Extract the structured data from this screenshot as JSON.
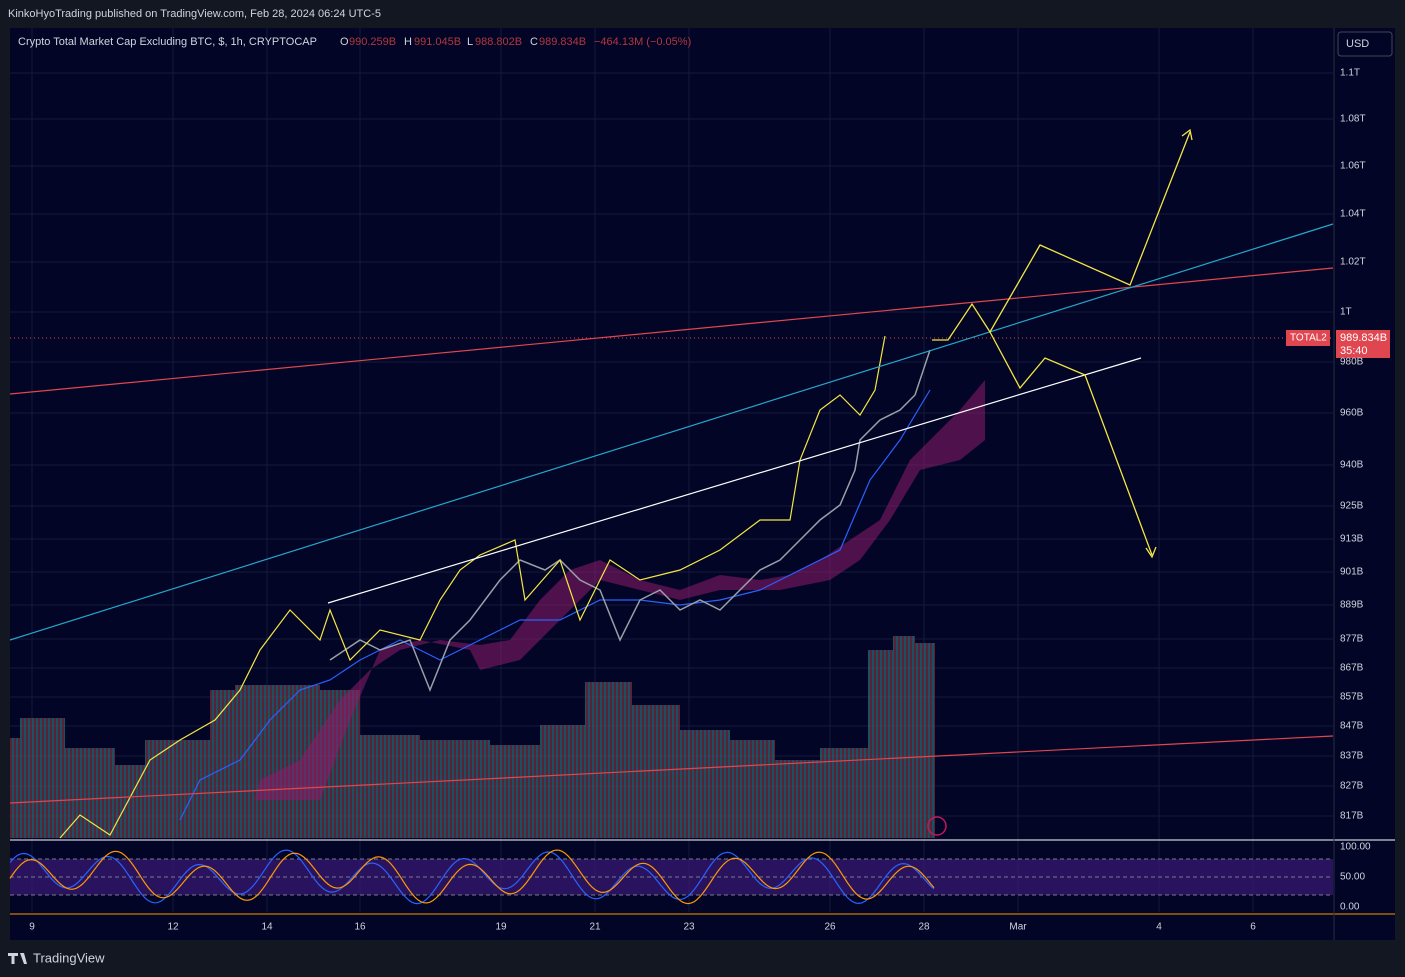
{
  "header": {
    "publisher": "KinkoHyoTrading published on TradingView.com, Feb 28, 2024 06:24 UTC-5"
  },
  "legend": {
    "symbol": "Crypto Total Market Cap Excluding BTC, $, 1h, CRYPTOCAP",
    "open_label": "O",
    "open": "990.259B",
    "high_label": "H",
    "high": "991.045B",
    "low_label": "L",
    "low": "988.802B",
    "close_label": "C",
    "close": "989.834B",
    "change": "−464.13M (−0.05%)"
  },
  "currency": "USD",
  "price_axis": [
    "1.1T",
    "1.08T",
    "1.06T",
    "1.04T",
    "1.02T",
    "1T",
    "980B",
    "960B",
    "940B",
    "925B",
    "913B",
    "901B",
    "889B",
    "877B",
    "867B",
    "857B",
    "847B",
    "837B",
    "827B",
    "817B"
  ],
  "price_tag": {
    "symbol": "TOTAL2",
    "price": "989.834B",
    "countdown": "35:40"
  },
  "oscillator_axis": [
    "100.00",
    "50.00",
    "0.00"
  ],
  "time_axis": [
    "9",
    "12",
    "14",
    "16",
    "19",
    "21",
    "23",
    "26",
    "28",
    "Mar",
    "4",
    "6"
  ],
  "footer": {
    "brand": "TradingView"
  }
}
